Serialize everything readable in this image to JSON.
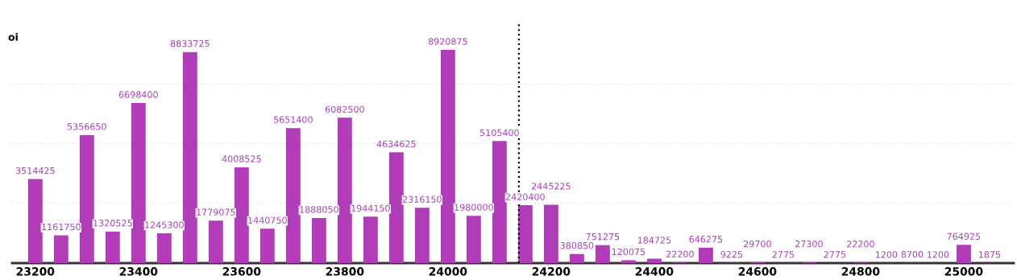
{
  "chart_data": {
    "type": "bar",
    "ylabel": "oi",
    "x": [
      23200,
      23250,
      23300,
      23350,
      23400,
      23450,
      23500,
      23550,
      23600,
      23650,
      23700,
      23750,
      23800,
      23850,
      23900,
      23950,
      24000,
      24050,
      24100,
      24150,
      24200,
      24250,
      24300,
      24350,
      24400,
      24450,
      24500,
      24550,
      24600,
      24650,
      24700,
      24750,
      24800,
      24850,
      24900,
      24950,
      25000,
      25050
    ],
    "values": [
      3514425,
      1161750,
      5356650,
      1320525,
      6698400,
      1245300,
      8833725,
      1779075,
      4008525,
      1440750,
      5651400,
      1888050,
      6082500,
      1944150,
      4634625,
      2316150,
      8920875,
      1980000,
      5105400,
      2420400,
      2445225,
      380850,
      751275,
      120075,
      184725,
      22200,
      646275,
      9225,
      29700,
      2775,
      27300,
      2775,
      22200,
      1200,
      8700,
      1200,
      764925,
      1875
    ],
    "color": "#b03cb8",
    "data_labels": true,
    "xlim": [
      23155,
      25097
    ],
    "xticks": [
      23200,
      23400,
      23600,
      23800,
      24000,
      24200,
      24400,
      24600,
      24800,
      25000
    ],
    "ylim": [
      0,
      10000000
    ],
    "yticks": [
      {
        "value": 2500000,
        "label": null
      },
      {
        "value": 5000000,
        "label": null
      },
      {
        "value": 7500000,
        "label": null
      }
    ],
    "tick_labels": "x",
    "grid": "y",
    "ref_lines": [
      {
        "axis": "x",
        "value": 24137.5,
        "color": "#000000",
        "line_style": "dotted"
      }
    ]
  }
}
